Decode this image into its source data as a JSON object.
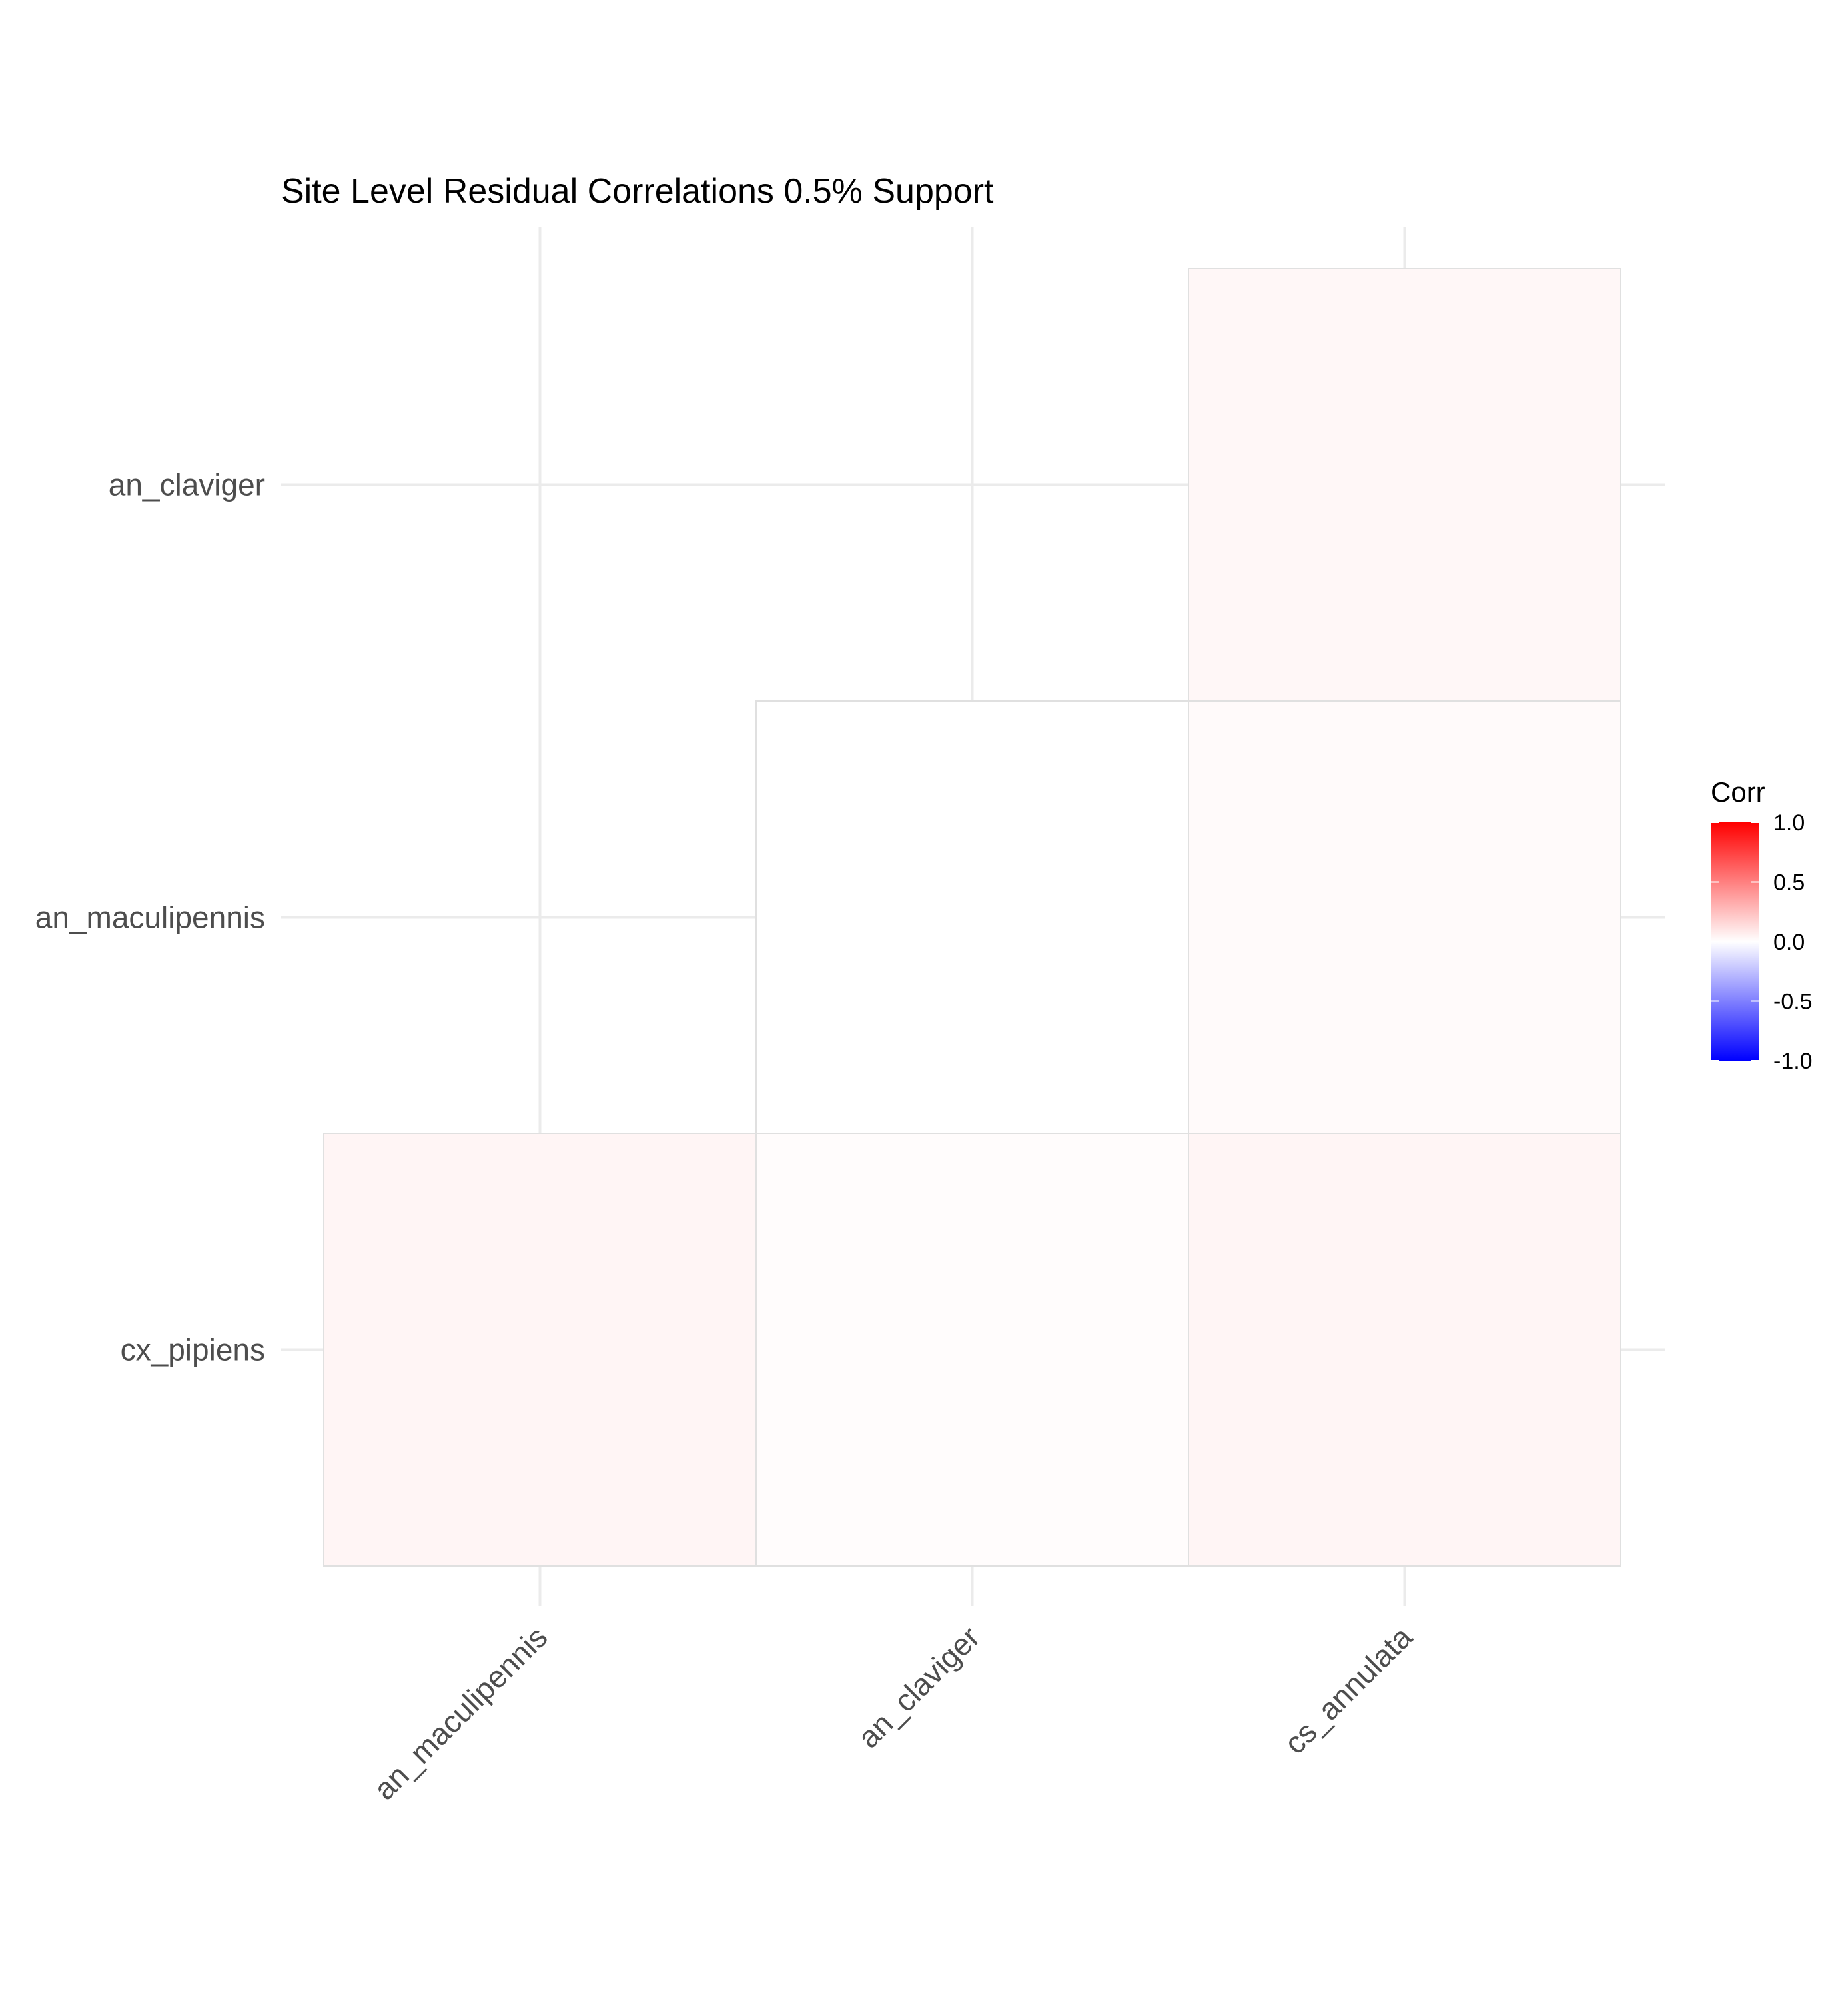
{
  "chart_data": {
    "type": "heatmap",
    "title": "Site Level Residual Correlations 0.5% Support",
    "xlabel": "",
    "ylabel": "",
    "x_categories": [
      "an_maculipennis",
      "an_claviger",
      "cs_annulata"
    ],
    "y_categories": [
      "cx_pipiens",
      "an_maculipennis",
      "an_claviger"
    ],
    "cells": [
      {
        "x": "cs_annulata",
        "y": "an_claviger",
        "value": 0.03
      },
      {
        "x": "an_claviger",
        "y": "an_maculipennis",
        "value": 0.0
      },
      {
        "x": "cs_annulata",
        "y": "an_maculipennis",
        "value": 0.02
      },
      {
        "x": "an_maculipennis",
        "y": "cx_pipiens",
        "value": 0.04
      },
      {
        "x": "an_claviger",
        "y": "cx_pipiens",
        "value": 0.01
      },
      {
        "x": "cs_annulata",
        "y": "cx_pipiens",
        "value": 0.04
      }
    ],
    "legend": {
      "title": "Corr",
      "position": "right",
      "range": [
        -1.0,
        1.0
      ],
      "ticks": [
        "1.0",
        "0.5",
        "0.0",
        "-0.5",
        "-1.0"
      ],
      "colors": {
        "low": "#0000ff",
        "mid": "#ffffff",
        "high": "#ff0000"
      }
    },
    "grid": true
  }
}
